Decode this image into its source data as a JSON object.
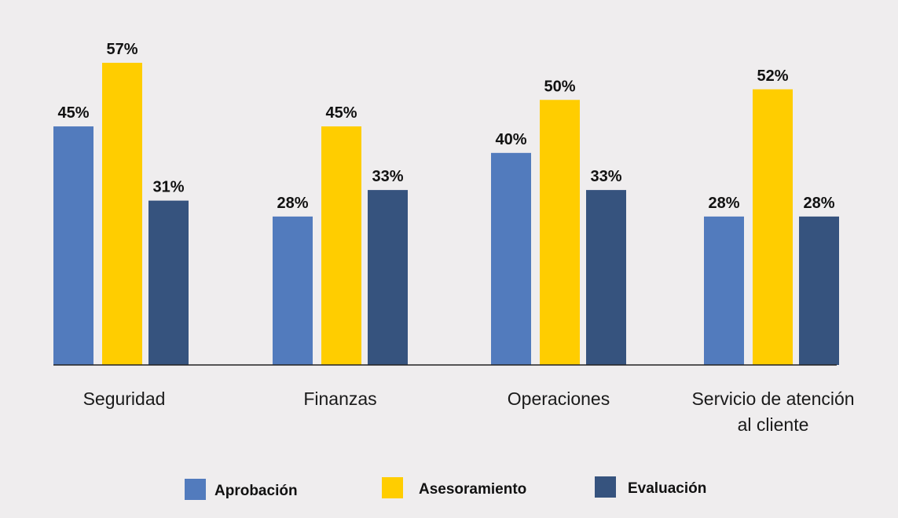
{
  "chart_data": {
    "type": "bar",
    "title": "",
    "categories": [
      [
        "Seguridad"
      ],
      [
        "Finanzas"
      ],
      [
        "Operaciones"
      ],
      [
        "Servicio de atención",
        "al cliente"
      ]
    ],
    "series": [
      {
        "name": "Aprobación",
        "color": "#527bbd",
        "values": [
          45,
          28,
          40,
          28
        ],
        "labels": [
          "45%",
          "28%",
          "40%",
          "28%"
        ]
      },
      {
        "name": "Asesoramiento",
        "color": "#ffcd00",
        "values": [
          57,
          45,
          50,
          52
        ],
        "labels": [
          "57%",
          "45%",
          "50%",
          "52%"
        ]
      },
      {
        "name": "Evaluación",
        "color": "#36537e",
        "values": [
          31,
          33,
          33,
          28
        ],
        "labels": [
          "31%",
          "33%",
          "33%",
          "28%"
        ]
      }
    ],
    "ylim": [
      0,
      57
    ],
    "xlabel": "",
    "ylabel": "",
    "grid": false,
    "legend": "bottom"
  }
}
